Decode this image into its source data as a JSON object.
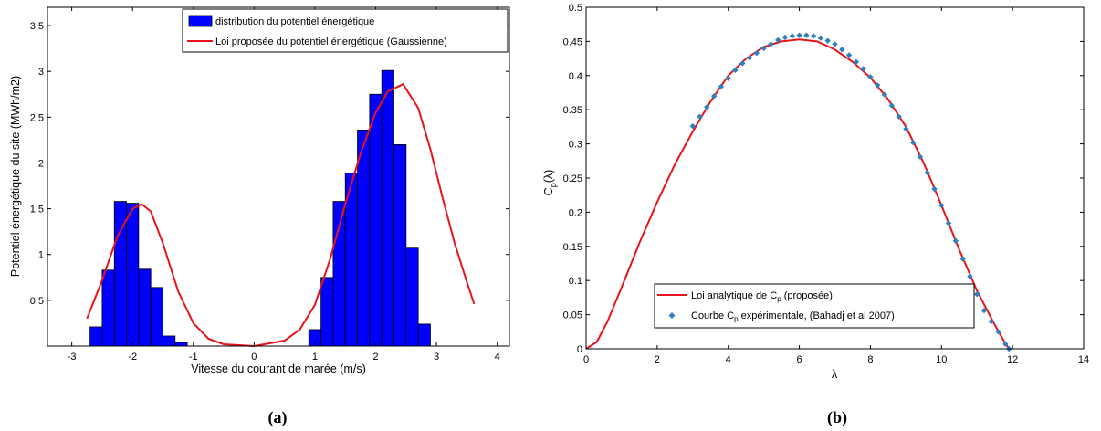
{
  "chart_data": [
    {
      "id": "a",
      "type": "bar",
      "caption": "(a)",
      "xlabel": "Vitesse du courant de marée (m/s)",
      "ylabel": "Potentiel énergétique du site (MWh/m2)",
      "xlim": [
        -3.4,
        4.2
      ],
      "ylim": [
        0,
        3.7
      ],
      "xticks": [
        -3,
        -2,
        -1,
        0,
        1,
        2,
        3,
        4
      ],
      "yticks": [
        0.5,
        1,
        1.5,
        2,
        2.5,
        3,
        3.5
      ],
      "bin_width": 0.2,
      "bins": [
        {
          "x": -2.6,
          "value": 0.21
        },
        {
          "x": -2.4,
          "value": 0.83
        },
        {
          "x": -2.2,
          "value": 1.58
        },
        {
          "x": -2.0,
          "value": 1.56
        },
        {
          "x": -1.8,
          "value": 0.84
        },
        {
          "x": -1.6,
          "value": 0.64
        },
        {
          "x": -1.4,
          "value": 0.11
        },
        {
          "x": -1.2,
          "value": 0.04
        },
        {
          "x": 1.0,
          "value": 0.18
        },
        {
          "x": 1.2,
          "value": 0.75
        },
        {
          "x": 1.4,
          "value": 1.58
        },
        {
          "x": 1.6,
          "value": 1.89
        },
        {
          "x": 1.8,
          "value": 2.36
        },
        {
          "x": 2.0,
          "value": 2.75
        },
        {
          "x": 2.2,
          "value": 3.01
        },
        {
          "x": 2.4,
          "value": 2.2
        },
        {
          "x": 2.6,
          "value": 1.07
        },
        {
          "x": 2.8,
          "value": 0.24
        }
      ],
      "curve": {
        "x": [
          -2.75,
          -2.5,
          -2.25,
          -2.0,
          -1.85,
          -1.7,
          -1.5,
          -1.25,
          -1.0,
          -0.75,
          -0.5,
          0.0,
          0.5,
          0.75,
          1.0,
          1.25,
          1.5,
          1.75,
          2.0,
          2.2,
          2.45,
          2.7,
          2.9,
          3.1,
          3.3,
          3.5,
          3.62
        ],
        "y": [
          0.3,
          0.72,
          1.2,
          1.5,
          1.55,
          1.47,
          1.12,
          0.6,
          0.25,
          0.08,
          0.02,
          0.0,
          0.06,
          0.18,
          0.45,
          0.95,
          1.55,
          2.1,
          2.55,
          2.78,
          2.86,
          2.6,
          2.15,
          1.62,
          1.12,
          0.7,
          0.46
        ]
      },
      "legend": {
        "position": "top-right",
        "entries": [
          "distribution du potentiel énergétique",
          "Loi proposée du potentiel énergétique (Gaussienne)"
        ]
      },
      "colors": {
        "bar": "#0000ff",
        "bar_edge": "#000000",
        "curve": "#e8141c"
      }
    },
    {
      "id": "b",
      "type": "line",
      "caption": "(b)",
      "xlabel": "λ",
      "ylabel": "C_p(λ)",
      "xlim": [
        0,
        14
      ],
      "ylim": [
        0,
        0.5
      ],
      "xticks": [
        0,
        2,
        4,
        6,
        8,
        10,
        12,
        14
      ],
      "yticks": [
        0,
        0.05,
        0.1,
        0.15,
        0.2,
        0.25,
        0.3,
        0.35,
        0.4,
        0.45,
        0.5
      ],
      "curve": {
        "x": [
          0.0,
          0.3,
          0.6,
          1.0,
          1.5,
          2.0,
          2.5,
          3.0,
          3.5,
          4.0,
          4.5,
          5.0,
          5.5,
          6.0,
          6.5,
          7.0,
          7.5,
          8.0,
          8.5,
          9.0,
          9.5,
          10.0,
          10.5,
          11.0,
          11.5,
          11.75,
          11.9
        ],
        "y": [
          0.0,
          0.01,
          0.04,
          0.09,
          0.155,
          0.215,
          0.27,
          0.318,
          0.362,
          0.4,
          0.425,
          0.442,
          0.45,
          0.453,
          0.45,
          0.438,
          0.42,
          0.397,
          0.365,
          0.325,
          0.272,
          0.21,
          0.145,
          0.085,
          0.035,
          0.012,
          0.0
        ]
      },
      "experimental": {
        "x": [
          3.0,
          3.2,
          3.4,
          3.6,
          3.8,
          4.0,
          4.2,
          4.4,
          4.6,
          4.8,
          5.0,
          5.2,
          5.4,
          5.6,
          5.8,
          6.0,
          6.2,
          6.4,
          6.6,
          6.8,
          7.0,
          7.2,
          7.4,
          7.6,
          7.8,
          8.0,
          8.2,
          8.4,
          8.6,
          8.8,
          9.0,
          9.2,
          9.4,
          9.6,
          9.8,
          10.0,
          10.2,
          10.4,
          10.6,
          10.8,
          11.0,
          11.2,
          11.4,
          11.6,
          11.8,
          11.9
        ],
        "y": [
          0.326,
          0.34,
          0.354,
          0.37,
          0.384,
          0.396,
          0.408,
          0.418,
          0.426,
          0.433,
          0.44,
          0.446,
          0.452,
          0.456,
          0.458,
          0.459,
          0.459,
          0.458,
          0.455,
          0.451,
          0.446,
          0.438,
          0.43,
          0.42,
          0.41,
          0.398,
          0.386,
          0.372,
          0.356,
          0.34,
          0.322,
          0.302,
          0.281,
          0.258,
          0.234,
          0.21,
          0.184,
          0.158,
          0.132,
          0.106,
          0.08,
          0.056,
          0.04,
          0.025,
          0.007,
          0.0
        ]
      },
      "legend": {
        "position": "bottom-center",
        "entries": [
          "Loi analytique de C_p (proposée)",
          "Courbe C_p expérimentale, (Bahadj et al 2007)"
        ]
      },
      "colors": {
        "curve": "#e8141c",
        "points": "#2f7fc1"
      }
    }
  ]
}
